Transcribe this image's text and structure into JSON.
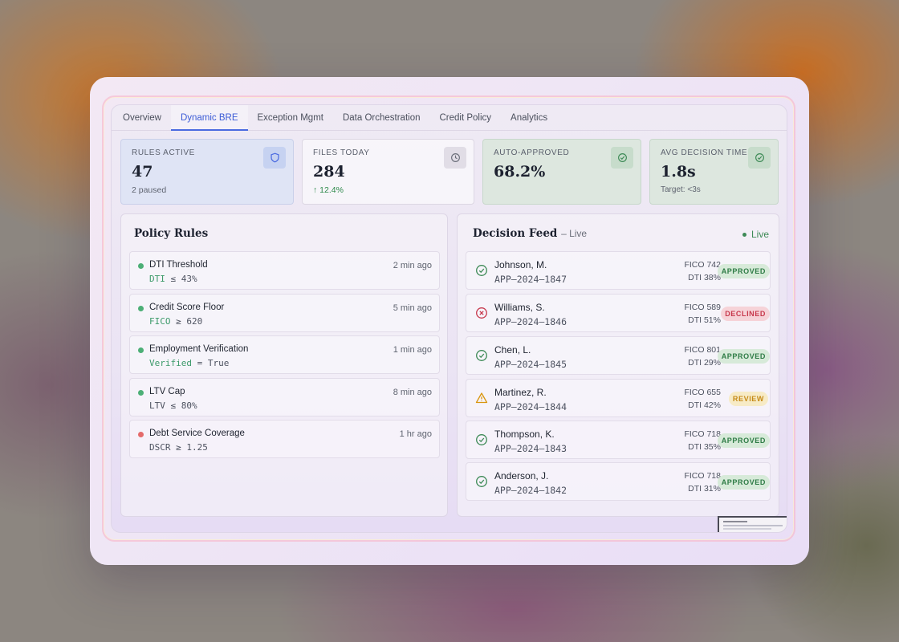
{
  "tabs": [
    "Overview",
    "Dynamic BRE",
    "Exception Mgmt",
    "Data Orchestration",
    "Credit Policy",
    "Analytics"
  ],
  "active_tab": "Dynamic BRE",
  "stats": [
    {
      "label": "RULES ACTIVE",
      "value": "47",
      "sub": "2 paused",
      "icon": "shield-icon"
    },
    {
      "label": "FILES TODAY",
      "value": "284",
      "sub": "↑ 12.4%",
      "icon": "clock-icon"
    },
    {
      "label": "AUTO-APPROVED",
      "value": "68.2%",
      "sub": "",
      "icon": "check-circle-icon"
    },
    {
      "label": "AVG DECISION TIME",
      "value": "1.8s",
      "sub": "Target: <3s",
      "icon": "check-circle-icon"
    }
  ],
  "policy_rules": {
    "title": "Policy Rules",
    "items": [
      {
        "name": "DTI Threshold",
        "expr_kw": "DTI",
        "expr_rest": " ≤ 43%",
        "time": "2 min ago",
        "status": "active"
      },
      {
        "name": "Credit Score Floor",
        "expr_kw": "FICO",
        "expr_rest": " ≥ 620",
        "time": "5 min ago",
        "status": "active"
      },
      {
        "name": "Employment Verification",
        "expr_kw": "Verified",
        "expr_rest": " = True",
        "time": "1 min ago",
        "status": "active"
      },
      {
        "name": "LTV Cap",
        "expr_kw": "",
        "expr_rest": "LTV  ≤  80%",
        "time": "8 min ago",
        "status": "active"
      },
      {
        "name": "Debt Service Coverage",
        "expr_kw": "",
        "expr_rest": "DSCR ≥ 1.25",
        "time": "1 hr ago",
        "status": "paused"
      }
    ]
  },
  "decision_feed": {
    "title": "Decision Feed",
    "title_suffix": "– Live",
    "live_label": "Live",
    "items": [
      {
        "name": "Johnson, M.",
        "app": "APP–2024–1847",
        "fico": "FICO 742",
        "dti": "DTI 38%",
        "status": "APPROVED",
        "kind": "approved"
      },
      {
        "name": "Williams, S.",
        "app": "APP–2024–1846",
        "fico": "FICO 589",
        "dti": "DTI 51%",
        "status": "DECLINED",
        "kind": "declined"
      },
      {
        "name": "Chen, L.",
        "app": "APP–2024–1845",
        "fico": "FICO 801",
        "dti": "DTI 29%",
        "status": "APPROVED",
        "kind": "approved"
      },
      {
        "name": "Martinez, R.",
        "app": "APP–2024–1844",
        "fico": "FICO 655",
        "dti": "DTI 42%",
        "status": "REVIEW",
        "kind": "review"
      },
      {
        "name": "Thompson, K.",
        "app": "APP–2024–1843",
        "fico": "FICO 718",
        "dti": "DTI 35%",
        "status": "APPROVED",
        "kind": "approved"
      },
      {
        "name": "Anderson, J.",
        "app": "APP–2024–1842",
        "fico": "FICO 718",
        "dti": "DTI 31%",
        "status": "APPROVED",
        "kind": "approved"
      }
    ]
  },
  "colors": {
    "accent": "#3b5bd6",
    "approved": "#2f7c46",
    "declined": "#c7384c",
    "review": "#c58a16",
    "active_dot": "#4caf76",
    "paused_dot": "#e46a6a"
  }
}
